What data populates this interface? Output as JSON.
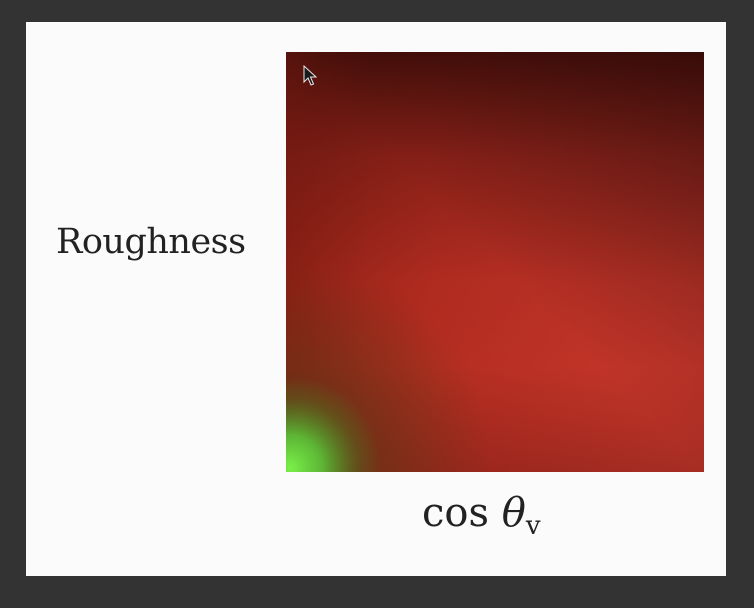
{
  "slide": {
    "y_axis_label": "Roughness",
    "x_axis_label": {
      "func": "cos",
      "symbol": "θ",
      "subscript": "v"
    }
  },
  "colors": {
    "background_frame": "#333333",
    "slide_background": "#fbfbfb",
    "lut_red": "#cf3a2e",
    "lut_dark_red": "#4a100c",
    "lut_green": "#6fe040"
  },
  "icons": {
    "cursor": "mouse-pointer-icon"
  }
}
